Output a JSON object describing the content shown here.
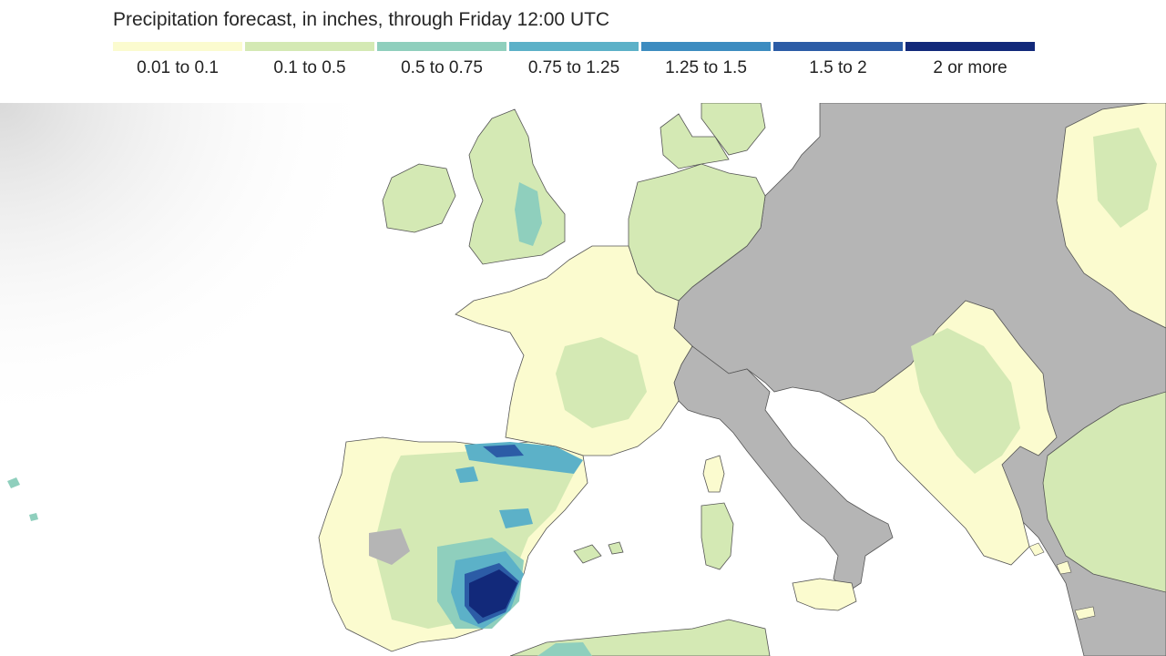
{
  "legend": {
    "title": "Precipitation forecast, in inches, through Friday 12:00 UTC",
    "items": [
      {
        "label": "0.01 to 0.1",
        "color": "#fbfbcf"
      },
      {
        "label": "0.1 to 0.5",
        "color": "#d4e9b4"
      },
      {
        "label": "0.5 to 0.75",
        "color": "#8fcfbd"
      },
      {
        "label": "0.75 to 1.25",
        "color": "#5cb1c8"
      },
      {
        "label": "1.25 to 1.5",
        "color": "#3d8cc0"
      },
      {
        "label": "1.5 to 2",
        "color": "#2c5ca6"
      },
      {
        "label": "2 or more",
        "color": "#12297a"
      }
    ]
  },
  "map": {
    "region": "Europe",
    "no_data_color": "#b5b5b5",
    "sea_color": "#ffffff"
  }
}
